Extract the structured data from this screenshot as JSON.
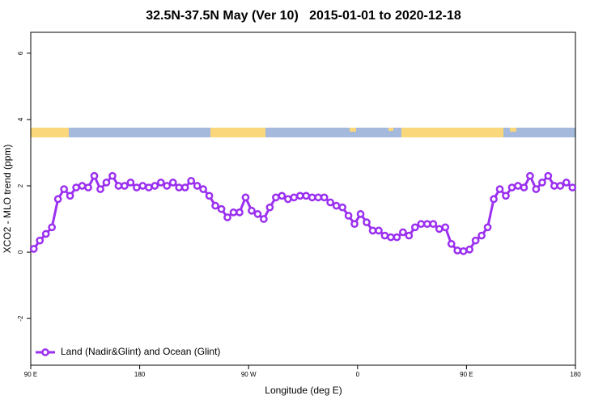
{
  "chart_data": {
    "type": "line",
    "title": "32.5N-37.5N May (Ver 10)   2015-01-01 to 2020-12-18",
    "x_label": "Longitude (deg E)",
    "y_label": "XCO2 - MLO trend (ppm)",
    "x": [
      92.5,
      97.5,
      102.5,
      107.5,
      112.5,
      117.5,
      122.5,
      127.5,
      132.5,
      137.5,
      142.5,
      147.5,
      152.5,
      157.5,
      162.5,
      167.5,
      172.5,
      177.5,
      182.5,
      187.5,
      192.5,
      197.5,
      202.5,
      207.5,
      212.5,
      217.5,
      222.5,
      227.5,
      232.5,
      237.5,
      242.5,
      247.5,
      252.5,
      257.5,
      262.5,
      267.5,
      272.5,
      277.5,
      282.5,
      287.5,
      292.5,
      297.5,
      302.5,
      307.5,
      312.5,
      317.5,
      322.5,
      327.5,
      332.5,
      337.5,
      342.5,
      347.5,
      352.5,
      357.5,
      362.5,
      367.5,
      372.5,
      377.5,
      382.5,
      387.5,
      392.5,
      397.5,
      402.5,
      407.5,
      412.5,
      417.5,
      422.5,
      427.5,
      432.5,
      437.5,
      442.5,
      447.5,
      452.5,
      457.5,
      462.5,
      467.5,
      472.5,
      477.5,
      482.5,
      487.5,
      492.5,
      497.5,
      502.5,
      507.5,
      512.5,
      517.5,
      522.5,
      527.5,
      532.5,
      537.5
    ],
    "series": [
      {
        "name": "Land (Nadir&Glint) and Ocean (Glint)",
        "color": "#9b30f0",
        "values": [
          0.1,
          0.35,
          0.55,
          0.75,
          1.6,
          1.9,
          1.7,
          1.95,
          2.0,
          1.95,
          2.3,
          1.9,
          2.1,
          2.3,
          2.0,
          2.0,
          2.1,
          1.95,
          2.0,
          1.95,
          2.0,
          2.1,
          2.0,
          2.1,
          1.95,
          1.95,
          2.15,
          2.0,
          1.9,
          1.7,
          1.4,
          1.3,
          1.05,
          1.2,
          1.2,
          1.65,
          1.25,
          1.15,
          1.0,
          1.35,
          1.65,
          1.7,
          1.6,
          1.65,
          1.7,
          1.7,
          1.65,
          1.65,
          1.65,
          1.5,
          1.4,
          1.35,
          1.1,
          0.85,
          1.15,
          0.9,
          0.65,
          0.65,
          0.5,
          0.45,
          0.45,
          0.6,
          0.5,
          0.75,
          0.85,
          0.85,
          0.85,
          0.7,
          0.75,
          0.25,
          0.05,
          0.03,
          0.08,
          0.35,
          0.5,
          0.75,
          1.6,
          1.9,
          1.7,
          1.95,
          2.0,
          1.95,
          2.3,
          1.9,
          2.1,
          2.3,
          2.0,
          2.0,
          2.1,
          1.95
        ]
      }
    ],
    "xlim": [
      90,
      540
    ],
    "xticks": [
      {
        "value": 90,
        "label": "90 E"
      },
      180,
      {
        "value": 270,
        "label": "90 W"
      },
      {
        "value": 360,
        "label": "0"
      },
      {
        "value": 450,
        "label": "90 E"
      },
      {
        "value": 540,
        "label": "180"
      }
    ],
    "ylim": [
      -3.41,
      6.63
    ],
    "yticks": [
      -2,
      0,
      2,
      4,
      6
    ],
    "legend_position": "bottom-left"
  }
}
